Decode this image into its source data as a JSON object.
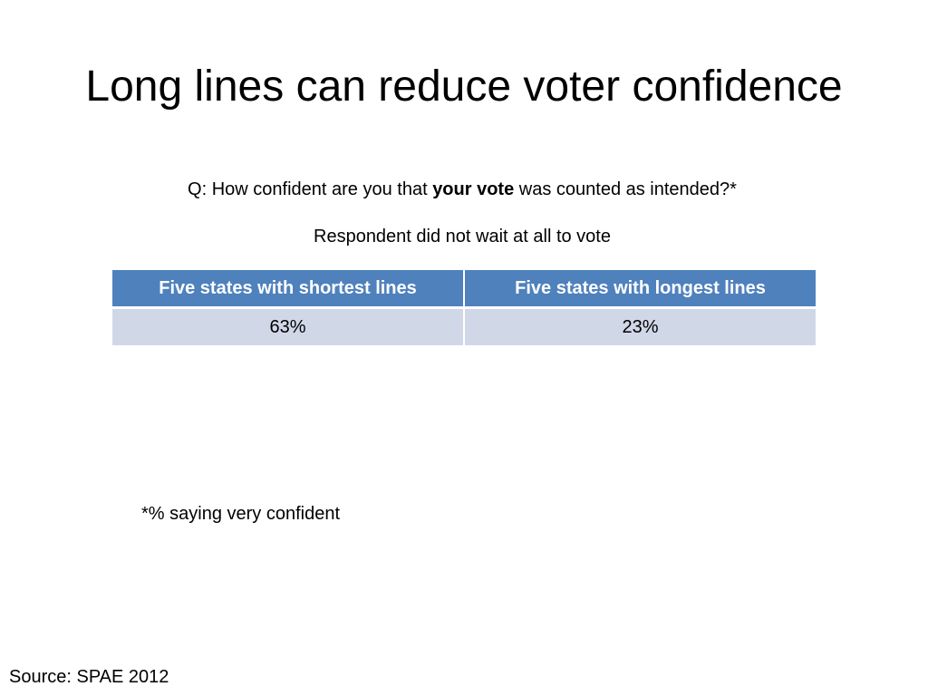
{
  "slide": {
    "title": "Long lines can reduce voter confidence",
    "question": {
      "prefix": "Q:  How confident are you that ",
      "bold": "your vote",
      "suffix": " was counted as intended?*"
    },
    "subtitle": "Respondent did not wait at all to vote",
    "table": {
      "headers": [
        "Five states with shortest lines",
        "Five states with longest lines"
      ],
      "rows": [
        [
          "63%",
          "23%"
        ]
      ]
    },
    "footnote": "*% saying very confident",
    "source": "Source:  SPAE 2012"
  },
  "colors": {
    "header_bg": "#4f81bd",
    "header_text": "#ffffff",
    "cell_bg": "#d0d8e8"
  }
}
